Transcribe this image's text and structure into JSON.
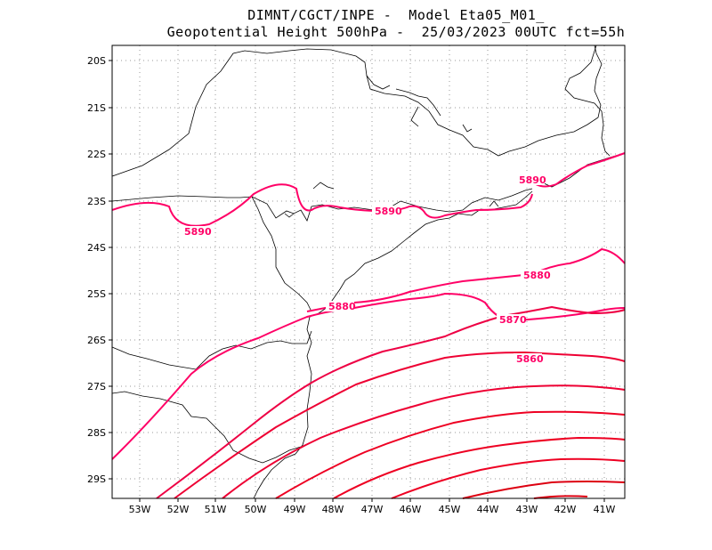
{
  "title": {
    "line1": "DIMNT/CGCT/INPE -  Model Eta05_M01_",
    "line2": "Geopotential Height 500hPa -  25/03/2023 00UTC fct=55h"
  },
  "axes": {
    "lon_labels": [
      "53W",
      "52W",
      "51W",
      "50W",
      "49W",
      "48W",
      "47W",
      "46W",
      "45W",
      "44W",
      "43W",
      "42W",
      "41W"
    ],
    "lat_labels": [
      "20S",
      "21S",
      "22S",
      "23S",
      "24S",
      "25S",
      "26S",
      "27S",
      "28S",
      "29S"
    ]
  },
  "contour_labels": [
    "5890",
    "5890",
    "5890",
    "5880",
    "5880",
    "5870",
    "5860"
  ],
  "colors": {
    "contour_high": "#ff0066",
    "contour_low": "#ee0022",
    "coast": "#000000",
    "grid": "#9a9a9a"
  }
}
